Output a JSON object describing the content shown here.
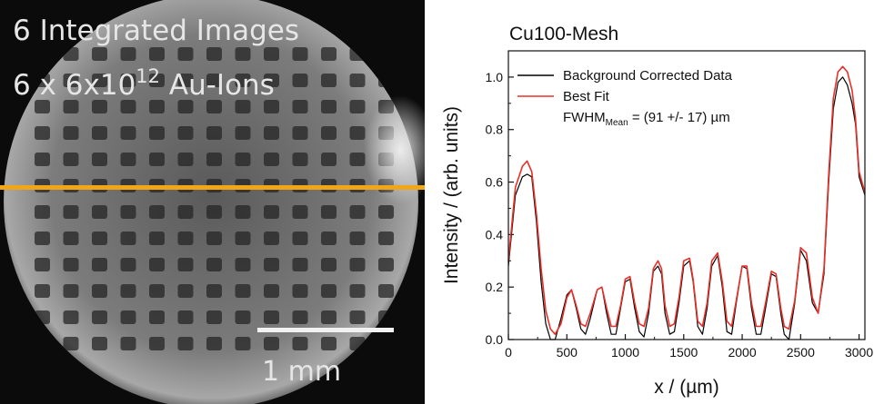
{
  "image_panel": {
    "line1": "6 Integrated Images",
    "line2_prefix": "6 x 6x10",
    "line2_exponent": "12",
    "line2_suffix": " Au-Ions",
    "scale_label": "1 mm",
    "line_color": "#f2a516"
  },
  "chart_data": {
    "type": "line",
    "title": "Cu100-Mesh",
    "xlabel": "x / (µm)",
    "ylabel": "Intensity / (arb. units)",
    "xlim": [
      0,
      3050
    ],
    "ylim": [
      0,
      1.1
    ],
    "xticks": [
      0,
      500,
      1000,
      1500,
      2000,
      2500,
      3000
    ],
    "yticks": [
      0.0,
      0.2,
      0.4,
      0.6,
      0.8,
      1.0
    ],
    "legend_position": "top-right",
    "fwhm_label": {
      "prefix": "FWHM",
      "subscript": "Mean",
      "suffix": " = (91 +/- 17) µm"
    },
    "series": [
      {
        "name": "Background Corrected Data",
        "color": "#000000",
        "x": [
          0,
          60,
          120,
          160,
          200,
          240,
          280,
          320,
          360,
          400,
          450,
          500,
          540,
          580,
          620,
          660,
          700,
          760,
          800,
          840,
          880,
          920,
          960,
          1000,
          1040,
          1080,
          1120,
          1160,
          1200,
          1240,
          1280,
          1310,
          1340,
          1380,
          1420,
          1460,
          1500,
          1550,
          1580,
          1620,
          1660,
          1700,
          1740,
          1790,
          1830,
          1870,
          1910,
          1950,
          2000,
          2040,
          2080,
          2120,
          2160,
          2200,
          2250,
          2290,
          2330,
          2360,
          2400,
          2450,
          2500,
          2550,
          2600,
          2650,
          2700,
          2740,
          2780,
          2820,
          2860,
          2900,
          2940,
          2970,
          3000,
          3050
        ],
        "y": [
          0.28,
          0.55,
          0.62,
          0.63,
          0.62,
          0.45,
          0.22,
          0.06,
          0.0,
          0.0,
          0.08,
          0.17,
          0.19,
          0.12,
          0.04,
          0.02,
          0.08,
          0.19,
          0.2,
          0.1,
          0.02,
          0.02,
          0.12,
          0.22,
          0.23,
          0.12,
          0.03,
          0.01,
          0.1,
          0.26,
          0.28,
          0.25,
          0.1,
          0.02,
          0.03,
          0.14,
          0.28,
          0.3,
          0.22,
          0.05,
          0.02,
          0.12,
          0.28,
          0.32,
          0.2,
          0.03,
          0.02,
          0.14,
          0.28,
          0.27,
          0.12,
          0.02,
          0.02,
          0.12,
          0.25,
          0.24,
          0.1,
          0.02,
          0.0,
          0.14,
          0.34,
          0.3,
          0.14,
          0.1,
          0.25,
          0.6,
          0.88,
          0.98,
          1.0,
          0.97,
          0.9,
          0.82,
          0.62,
          0.55
        ]
      },
      {
        "name": "Best Fit",
        "color": "#e8302a",
        "x": [
          0,
          60,
          120,
          160,
          200,
          240,
          280,
          320,
          360,
          400,
          450,
          500,
          540,
          580,
          620,
          660,
          700,
          760,
          800,
          840,
          880,
          920,
          960,
          1000,
          1040,
          1080,
          1120,
          1160,
          1200,
          1240,
          1280,
          1310,
          1340,
          1380,
          1420,
          1460,
          1500,
          1550,
          1580,
          1620,
          1660,
          1700,
          1740,
          1790,
          1830,
          1870,
          1910,
          1950,
          2000,
          2040,
          2080,
          2120,
          2160,
          2200,
          2250,
          2290,
          2330,
          2360,
          2400,
          2450,
          2500,
          2550,
          2600,
          2650,
          2700,
          2740,
          2780,
          2820,
          2860,
          2900,
          2940,
          2970,
          3000,
          3050
        ],
        "y": [
          0.3,
          0.58,
          0.66,
          0.68,
          0.64,
          0.48,
          0.27,
          0.11,
          0.04,
          0.02,
          0.06,
          0.16,
          0.19,
          0.13,
          0.06,
          0.05,
          0.1,
          0.19,
          0.2,
          0.12,
          0.05,
          0.05,
          0.13,
          0.23,
          0.24,
          0.14,
          0.06,
          0.05,
          0.12,
          0.27,
          0.3,
          0.27,
          0.13,
          0.05,
          0.06,
          0.16,
          0.3,
          0.31,
          0.23,
          0.07,
          0.05,
          0.14,
          0.3,
          0.33,
          0.22,
          0.07,
          0.05,
          0.15,
          0.28,
          0.28,
          0.14,
          0.05,
          0.05,
          0.14,
          0.26,
          0.25,
          0.12,
          0.05,
          0.04,
          0.15,
          0.35,
          0.33,
          0.16,
          0.1,
          0.27,
          0.63,
          0.92,
          1.02,
          1.04,
          1.02,
          0.95,
          0.84,
          0.64,
          0.56
        ]
      }
    ]
  }
}
